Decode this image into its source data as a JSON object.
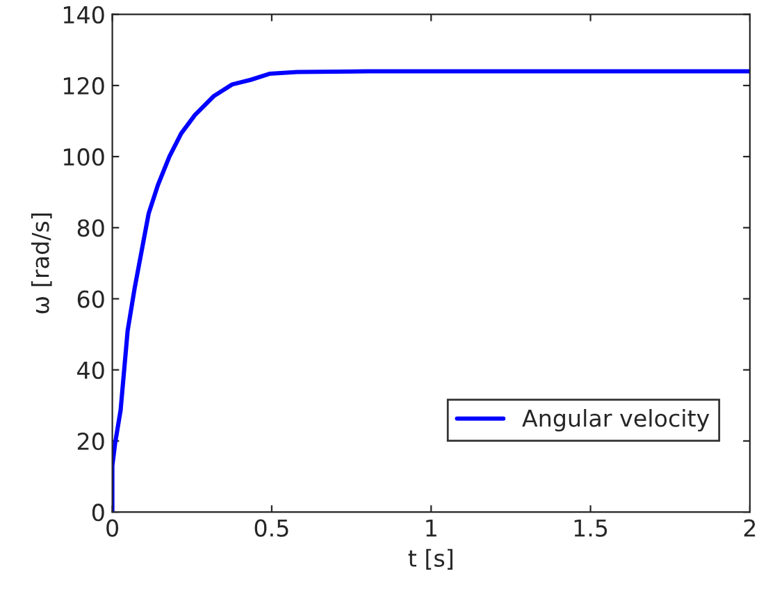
{
  "chart_data": {
    "type": "line",
    "xlabel": "t [s]",
    "ylabel": "ω [rad/s]",
    "series": [
      {
        "name": "Angular velocity",
        "color": "#0000ff",
        "x": [
          0,
          0,
          0.009,
          0.026,
          0.048,
          0.07,
          0.092,
          0.114,
          0.143,
          0.179,
          0.216,
          0.259,
          0.318,
          0.376,
          0.434,
          0.493,
          0.58,
          0.8,
          1.0,
          1.5,
          2.0
        ],
        "values": [
          0,
          13,
          19.5,
          28.7,
          51,
          63,
          73.5,
          84,
          92,
          100,
          106.5,
          111.7,
          117,
          120.3,
          121.6,
          123.3,
          123.8,
          124,
          124,
          124,
          124
        ]
      }
    ],
    "xlim": [
      0,
      2
    ],
    "xticks": [
      0,
      0.5,
      1,
      1.5,
      2
    ],
    "ylim": [
      0,
      140
    ],
    "yticks": [
      0,
      20,
      40,
      60,
      80,
      100,
      120,
      140
    ],
    "grid": false,
    "legend": "lower right",
    "line_style": "solid"
  }
}
